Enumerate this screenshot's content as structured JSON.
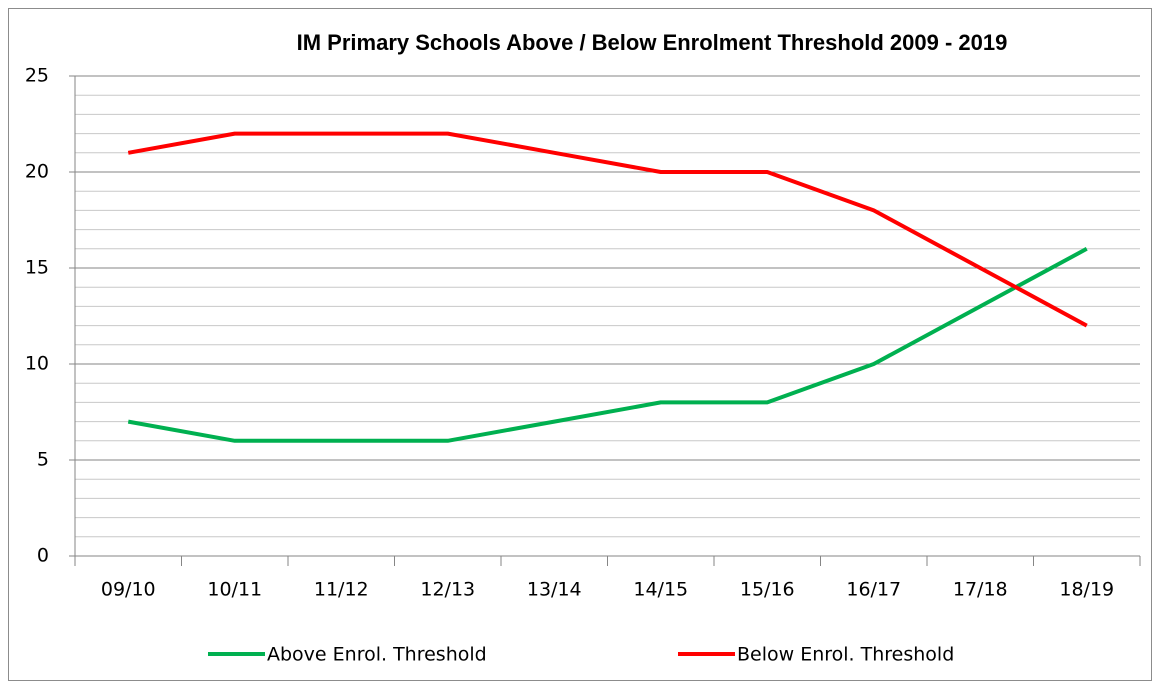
{
  "chart_data": {
    "type": "line",
    "title": "IM Primary Schools Above / Below Enrolment Threshold 2009 - 2019",
    "categories": [
      "09/10",
      "10/11",
      "11/12",
      "12/13",
      "13/14",
      "14/15",
      "15/16",
      "16/17",
      "17/18",
      "18/19"
    ],
    "series": [
      {
        "name": "Above Enrol. Threshold",
        "color": "#00b050",
        "values": [
          7,
          6,
          6,
          6,
          7,
          8,
          8,
          10,
          13,
          16
        ]
      },
      {
        "name": "Below Enrol. Threshold",
        "color": "#ff0000",
        "values": [
          21,
          22,
          22,
          22,
          21,
          20,
          20,
          18,
          15,
          12
        ]
      }
    ],
    "ylim": [
      0,
      25
    ],
    "yticks": [
      0,
      5,
      10,
      15,
      20,
      25
    ],
    "minor_yticks": [
      1,
      2,
      3,
      4,
      6,
      7,
      8,
      9,
      11,
      12,
      13,
      14,
      16,
      17,
      18,
      19,
      21,
      22,
      23,
      24
    ],
    "grid": true,
    "legend": "bottom"
  }
}
